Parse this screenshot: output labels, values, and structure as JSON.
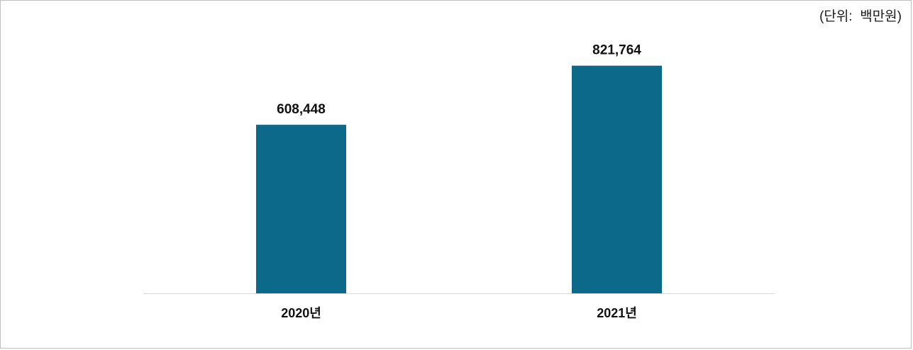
{
  "chart_data": {
    "type": "bar",
    "unit_label": "(단위:  백만원)",
    "categories": [
      "2020년",
      "2021년"
    ],
    "values": [
      608448,
      821764
    ],
    "value_labels": [
      "608,448",
      "821,764"
    ],
    "ylim": [
      0,
      1000000
    ],
    "grid": false,
    "legend": "none",
    "bar_color": "#0d6989",
    "axis_color": "#d9d9d9"
  }
}
